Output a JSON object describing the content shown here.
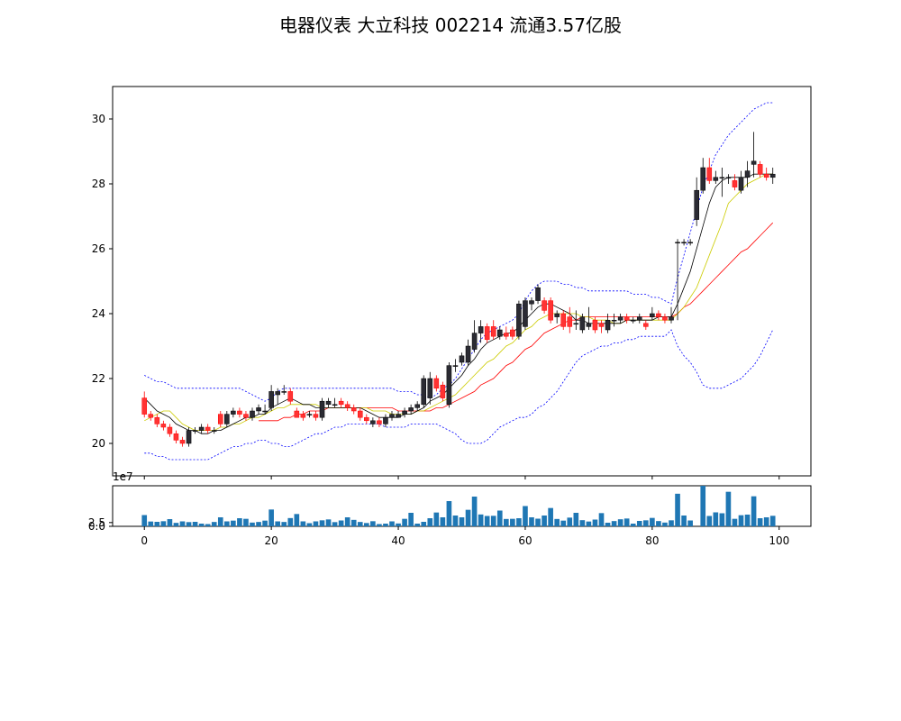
{
  "chart_data": {
    "type": "candlestick",
    "title": "电器仪表 大立科技 002214 流通3.57亿股",
    "x": [
      0,
      1,
      2,
      3,
      4,
      5,
      6,
      7,
      8,
      9,
      10,
      11,
      12,
      13,
      14,
      15,
      16,
      17,
      18,
      19,
      20,
      21,
      22,
      23,
      24,
      25,
      26,
      27,
      28,
      29,
      30,
      31,
      32,
      33,
      34,
      35,
      36,
      37,
      38,
      39,
      40,
      41,
      42,
      43,
      44,
      45,
      46,
      47,
      48,
      49,
      50,
      51,
      52,
      53,
      54,
      55,
      56,
      57,
      58,
      59,
      60,
      61,
      62,
      63,
      64,
      65,
      66,
      67,
      68,
      69,
      70,
      71,
      72,
      73,
      74,
      75,
      76,
      77,
      78,
      79,
      80,
      81,
      82,
      83,
      84,
      85,
      86,
      87,
      88,
      89,
      90,
      91,
      92,
      93,
      94,
      95,
      96,
      97,
      98,
      99
    ],
    "open": [
      21.4,
      20.9,
      20.8,
      20.6,
      20.5,
      20.3,
      20.1,
      20.0,
      20.4,
      20.4,
      20.5,
      20.4,
      20.9,
      20.6,
      20.9,
      21.0,
      20.9,
      20.8,
      21.0,
      21.0,
      21.1,
      21.5,
      21.6,
      21.6,
      21.0,
      20.9,
      20.9,
      20.9,
      20.8,
      21.2,
      21.2,
      21.3,
      21.2,
      21.1,
      21.0,
      20.8,
      20.6,
      20.7,
      20.6,
      20.8,
      20.8,
      20.9,
      21.0,
      21.1,
      21.2,
      21.4,
      22.0,
      21.8,
      21.2,
      22.4,
      22.5,
      22.5,
      22.9,
      23.4,
      23.6,
      23.6,
      23.3,
      23.4,
      23.5,
      23.3,
      23.6,
      24.3,
      24.4,
      24.4,
      24.4,
      23.9,
      24.0,
      23.9,
      23.7,
      23.5,
      23.6,
      23.8,
      23.7,
      23.5,
      23.8,
      23.8,
      23.9,
      23.8,
      23.8,
      23.7,
      23.9,
      24.0,
      23.9,
      23.8,
      26.2,
      26.2,
      26.2,
      26.9,
      27.8,
      28.5,
      28.1,
      28.2,
      28.2,
      28.1,
      27.8,
      28.2,
      28.6,
      28.6,
      28.3,
      28.2
    ],
    "close": [
      20.9,
      20.8,
      20.6,
      20.5,
      20.3,
      20.1,
      20.0,
      20.4,
      20.4,
      20.5,
      20.4,
      20.4,
      20.6,
      20.9,
      21.0,
      20.9,
      20.8,
      21.0,
      21.1,
      21.0,
      21.6,
      21.6,
      21.6,
      21.3,
      20.8,
      20.8,
      20.9,
      20.8,
      21.3,
      21.3,
      21.2,
      21.2,
      21.1,
      21.0,
      20.8,
      20.7,
      20.7,
      20.6,
      20.8,
      20.9,
      20.9,
      21.0,
      21.1,
      21.2,
      22.0,
      22.0,
      21.7,
      21.4,
      22.4,
      22.4,
      22.7,
      23.0,
      23.4,
      23.6,
      23.2,
      23.3,
      23.5,
      23.3,
      23.3,
      24.3,
      24.4,
      24.4,
      24.8,
      24.1,
      23.8,
      24.0,
      23.6,
      23.6,
      23.7,
      23.9,
      23.7,
      23.5,
      23.6,
      23.8,
      23.8,
      23.9,
      23.8,
      23.8,
      23.9,
      23.6,
      24.0,
      23.9,
      23.8,
      23.9,
      26.2,
      26.2,
      26.2,
      27.8,
      28.5,
      28.1,
      28.2,
      28.2,
      28.2,
      27.9,
      28.2,
      28.4,
      28.7,
      28.3,
      28.2,
      28.3
    ],
    "high": [
      21.6,
      21.0,
      20.9,
      20.7,
      20.6,
      20.4,
      20.2,
      20.5,
      20.5,
      20.6,
      20.6,
      20.5,
      21.0,
      21.0,
      21.1,
      21.1,
      21.0,
      21.1,
      21.2,
      21.2,
      21.8,
      21.7,
      21.8,
      21.7,
      21.1,
      21.0,
      21.0,
      21.0,
      21.4,
      21.4,
      21.4,
      21.4,
      21.3,
      21.2,
      21.1,
      20.9,
      20.8,
      20.8,
      20.9,
      21.0,
      21.0,
      21.1,
      21.2,
      21.3,
      22.1,
      22.2,
      22.1,
      21.9,
      22.5,
      22.6,
      22.8,
      23.2,
      23.8,
      23.8,
      23.7,
      23.8,
      23.6,
      23.6,
      23.6,
      24.4,
      24.5,
      24.5,
      24.9,
      24.5,
      24.5,
      24.1,
      24.1,
      24.2,
      24.1,
      24.0,
      24.2,
      23.9,
      23.8,
      24.0,
      24.0,
      24.0,
      24.0,
      23.9,
      24.0,
      23.8,
      24.2,
      24.1,
      24.0,
      24.2,
      26.3,
      26.3,
      26.3,
      28.2,
      28.8,
      28.8,
      28.4,
      28.5,
      28.3,
      28.3,
      28.4,
      28.7,
      29.6,
      28.7,
      28.5,
      28.5
    ],
    "low": [
      20.8,
      20.7,
      20.5,
      20.4,
      20.2,
      20.0,
      19.9,
      19.9,
      20.3,
      20.3,
      20.3,
      20.3,
      20.5,
      20.5,
      20.8,
      20.8,
      20.7,
      20.7,
      20.9,
      20.9,
      21.0,
      21.2,
      21.5,
      21.2,
      20.8,
      20.7,
      20.8,
      20.7,
      20.7,
      21.1,
      21.1,
      21.1,
      21.0,
      20.9,
      20.7,
      20.6,
      20.5,
      20.5,
      20.5,
      20.7,
      20.8,
      20.8,
      20.9,
      21.0,
      21.1,
      21.2,
      21.6,
      21.3,
      21.1,
      22.2,
      22.4,
      22.4,
      22.8,
      23.1,
      23.1,
      23.2,
      23.2,
      23.2,
      23.2,
      23.2,
      23.5,
      24.1,
      24.3,
      24.0,
      23.7,
      23.7,
      23.5,
      23.4,
      23.5,
      23.4,
      23.5,
      23.4,
      23.4,
      23.4,
      23.6,
      23.7,
      23.7,
      23.7,
      23.7,
      23.5,
      23.8,
      23.8,
      23.7,
      23.7,
      23.8,
      26.1,
      26.1,
      26.7,
      27.7,
      28.0,
      28.0,
      27.6,
      28.0,
      27.8,
      27.7,
      27.9,
      28.2,
      28.2,
      28.1,
      28.0
    ],
    "ma_black": [
      21.4,
      21.2,
      21.0,
      20.9,
      20.8,
      20.6,
      20.5,
      20.4,
      20.4,
      20.3,
      20.3,
      20.4,
      20.4,
      20.5,
      20.6,
      20.7,
      20.8,
      20.8,
      20.9,
      20.9,
      21.1,
      21.2,
      21.3,
      21.4,
      21.3,
      21.2,
      21.2,
      21.1,
      21.1,
      21.1,
      21.1,
      21.1,
      21.1,
      21.1,
      21.1,
      21.0,
      20.9,
      20.8,
      20.8,
      20.8,
      20.8,
      20.9,
      20.9,
      21.0,
      21.1,
      21.3,
      21.4,
      21.5,
      21.7,
      21.9,
      22.1,
      22.4,
      22.6,
      22.9,
      23.1,
      23.2,
      23.3,
      23.4,
      23.4,
      23.6,
      23.8,
      24.0,
      24.2,
      24.3,
      24.3,
      24.2,
      24.1,
      24.0,
      23.8,
      23.8,
      23.7,
      23.7,
      23.7,
      23.7,
      23.7,
      23.7,
      23.8,
      23.8,
      23.8,
      23.8,
      23.8,
      23.9,
      23.9,
      23.9,
      24.3,
      24.8,
      25.3,
      26.0,
      26.7,
      27.4,
      27.9,
      28.1,
      28.2,
      28.2,
      28.2,
      28.2,
      28.3,
      28.3,
      28.3,
      28.3
    ],
    "ma_yellow": [
      20.7,
      20.8,
      20.9,
      21.0,
      21.0,
      20.8,
      20.6,
      20.5,
      20.4,
      20.4,
      20.4,
      20.4,
      20.5,
      20.5,
      20.6,
      20.6,
      20.7,
      20.8,
      20.8,
      20.9,
      21.0,
      21.1,
      21.1,
      21.2,
      21.2,
      21.2,
      21.2,
      21.2,
      21.1,
      21.1,
      21.1,
      21.1,
      21.1,
      21.1,
      21.1,
      21.1,
      21.0,
      21.0,
      21.0,
      20.9,
      20.9,
      20.9,
      20.9,
      21.0,
      21.0,
      21.1,
      21.2,
      21.3,
      21.4,
      21.5,
      21.7,
      21.9,
      22.1,
      22.3,
      22.5,
      22.6,
      22.8,
      23.0,
      23.1,
      23.3,
      23.5,
      23.6,
      23.8,
      23.9,
      24.0,
      24.0,
      24.0,
      24.0,
      24.0,
      23.9,
      23.9,
      23.8,
      23.8,
      23.8,
      23.7,
      23.7,
      23.8,
      23.8,
      23.8,
      23.8,
      23.8,
      23.8,
      23.8,
      23.8,
      24.0,
      24.2,
      24.5,
      24.8,
      25.3,
      25.8,
      26.3,
      26.8,
      27.4,
      27.6,
      27.8,
      28.0,
      28.1,
      28.2,
      28.3,
      28.3
    ],
    "ma_red": [
      null,
      null,
      null,
      null,
      null,
      null,
      null,
      null,
      null,
      null,
      null,
      null,
      null,
      null,
      null,
      null,
      null,
      null,
      20.7,
      20.7,
      20.7,
      20.7,
      20.8,
      20.8,
      20.9,
      20.9,
      21.0,
      21.0,
      21.0,
      21.1,
      21.1,
      21.1,
      21.1,
      21.1,
      21.1,
      21.1,
      21.1,
      21.1,
      21.1,
      21.1,
      21.0,
      21.0,
      21.0,
      21.0,
      21.0,
      21.0,
      21.1,
      21.1,
      21.2,
      21.3,
      21.4,
      21.5,
      21.6,
      21.8,
      21.9,
      22.0,
      22.2,
      22.4,
      22.5,
      22.7,
      22.9,
      23.0,
      23.2,
      23.4,
      23.5,
      23.6,
      23.7,
      23.8,
      23.8,
      23.9,
      23.9,
      23.9,
      23.9,
      23.9,
      23.9,
      23.9,
      23.9,
      23.9,
      23.9,
      23.9,
      23.9,
      23.9,
      23.9,
      23.9,
      24.0,
      24.2,
      24.3,
      24.5,
      24.7,
      24.9,
      25.1,
      25.3,
      25.5,
      25.7,
      25.9,
      26.0,
      26.2,
      26.4,
      26.6,
      26.8
    ],
    "band_upper": [
      22.1,
      22.0,
      21.9,
      21.9,
      21.8,
      21.7,
      21.7,
      21.7,
      21.7,
      21.7,
      21.7,
      21.7,
      21.7,
      21.7,
      21.7,
      21.7,
      21.6,
      21.5,
      21.4,
      21.3,
      21.4,
      21.6,
      21.7,
      21.7,
      21.7,
      21.7,
      21.7,
      21.7,
      21.7,
      21.7,
      21.7,
      21.7,
      21.7,
      21.7,
      21.7,
      21.7,
      21.7,
      21.7,
      21.7,
      21.7,
      21.6,
      21.6,
      21.6,
      21.5,
      21.5,
      21.4,
      21.5,
      21.7,
      21.8,
      22.0,
      22.3,
      22.6,
      22.9,
      23.2,
      23.4,
      23.5,
      23.6,
      23.7,
      23.8,
      24.0,
      24.4,
      24.7,
      24.9,
      25.0,
      25.0,
      25.0,
      24.9,
      24.9,
      24.8,
      24.8,
      24.7,
      24.7,
      24.7,
      24.7,
      24.7,
      24.7,
      24.7,
      24.6,
      24.6,
      24.6,
      24.5,
      24.5,
      24.4,
      24.3,
      25.1,
      25.8,
      26.5,
      27.2,
      27.9,
      28.4,
      28.9,
      29.2,
      29.5,
      29.7,
      29.9,
      30.1,
      30.3,
      30.4,
      30.5,
      30.5
    ],
    "band_lower": [
      19.7,
      19.7,
      19.6,
      19.6,
      19.5,
      19.5,
      19.5,
      19.5,
      19.5,
      19.5,
      19.5,
      19.6,
      19.7,
      19.8,
      19.9,
      19.9,
      20.0,
      20.0,
      20.1,
      20.1,
      20.0,
      20.0,
      19.9,
      19.9,
      20.0,
      20.1,
      20.2,
      20.3,
      20.3,
      20.4,
      20.5,
      20.5,
      20.6,
      20.6,
      20.6,
      20.6,
      20.6,
      20.6,
      20.5,
      20.5,
      20.5,
      20.5,
      20.6,
      20.6,
      20.6,
      20.6,
      20.6,
      20.5,
      20.4,
      20.3,
      20.1,
      20.0,
      20.0,
      20.0,
      20.1,
      20.3,
      20.5,
      20.6,
      20.7,
      20.8,
      20.8,
      20.9,
      21.1,
      21.2,
      21.4,
      21.6,
      21.9,
      22.2,
      22.5,
      22.7,
      22.8,
      22.9,
      23.0,
      23.0,
      23.1,
      23.1,
      23.2,
      23.2,
      23.3,
      23.3,
      23.3,
      23.3,
      23.3,
      23.5,
      23.0,
      22.7,
      22.5,
      22.2,
      21.8,
      21.7,
      21.7,
      21.7,
      21.8,
      21.9,
      22.0,
      22.2,
      22.4,
      22.7,
      23.1,
      23.5
    ],
    "volume": [
      7.5,
      3.2,
      3.0,
      3.4,
      4.8,
      2.3,
      3.3,
      2.8,
      3.0,
      1.8,
      1.5,
      2.9,
      6.0,
      3.3,
      3.8,
      5.4,
      5.0,
      2.5,
      2.9,
      3.8,
      11.2,
      3.3,
      2.9,
      5.5,
      8.2,
      3.3,
      2.1,
      3.3,
      4.0,
      4.6,
      2.8,
      3.9,
      6.0,
      4.3,
      2.9,
      2.2,
      3.4,
      1.5,
      1.8,
      3.3,
      1.9,
      5.0,
      9.0,
      1.8,
      3.0,
      5.4,
      9.2,
      6.0,
      16.8,
      7.2,
      6.0,
      11.0,
      19.8,
      7.9,
      6.9,
      7.0,
      10.5,
      4.9,
      5.0,
      5.4,
      13.5,
      6.0,
      5.1,
      7.2,
      12.2,
      4.9,
      3.8,
      5.8,
      9.0,
      4.1,
      3.2,
      4.5,
      8.8,
      2.4,
      3.5,
      4.7,
      5.2,
      1.8,
      3.6,
      4.0,
      5.6,
      3.5,
      2.5,
      4.0,
      21.7,
      7.2,
      3.9,
      0.0,
      27.0,
      6.9,
      9.3,
      8.7,
      23.0,
      5.0,
      7.4,
      7.8,
      20.0,
      5.4,
      6.0,
      7.0
    ],
    "volume_scale_label": "1e7",
    "price_yticks": [
      "20",
      "22",
      "24",
      "26",
      "28",
      "30"
    ],
    "price_ylim": [
      19.0,
      31.0
    ],
    "volume_yticks": [
      "0.0",
      "2.5"
    ],
    "volume_ylim": [
      0,
      27
    ],
    "xticks": [
      "0",
      "20",
      "40",
      "60",
      "80",
      "100"
    ],
    "xlim": [
      -5,
      105
    ],
    "colors": {
      "up": "#000000",
      "up_fill": "#2b2b33",
      "down": "#ff0000",
      "down_fill": "#ff3333",
      "ma_black": "#000000",
      "ma_yellow": "#cccc00",
      "ma_red": "#ff0000",
      "band": "#0000ff",
      "volume": "#1f77b4"
    }
  }
}
